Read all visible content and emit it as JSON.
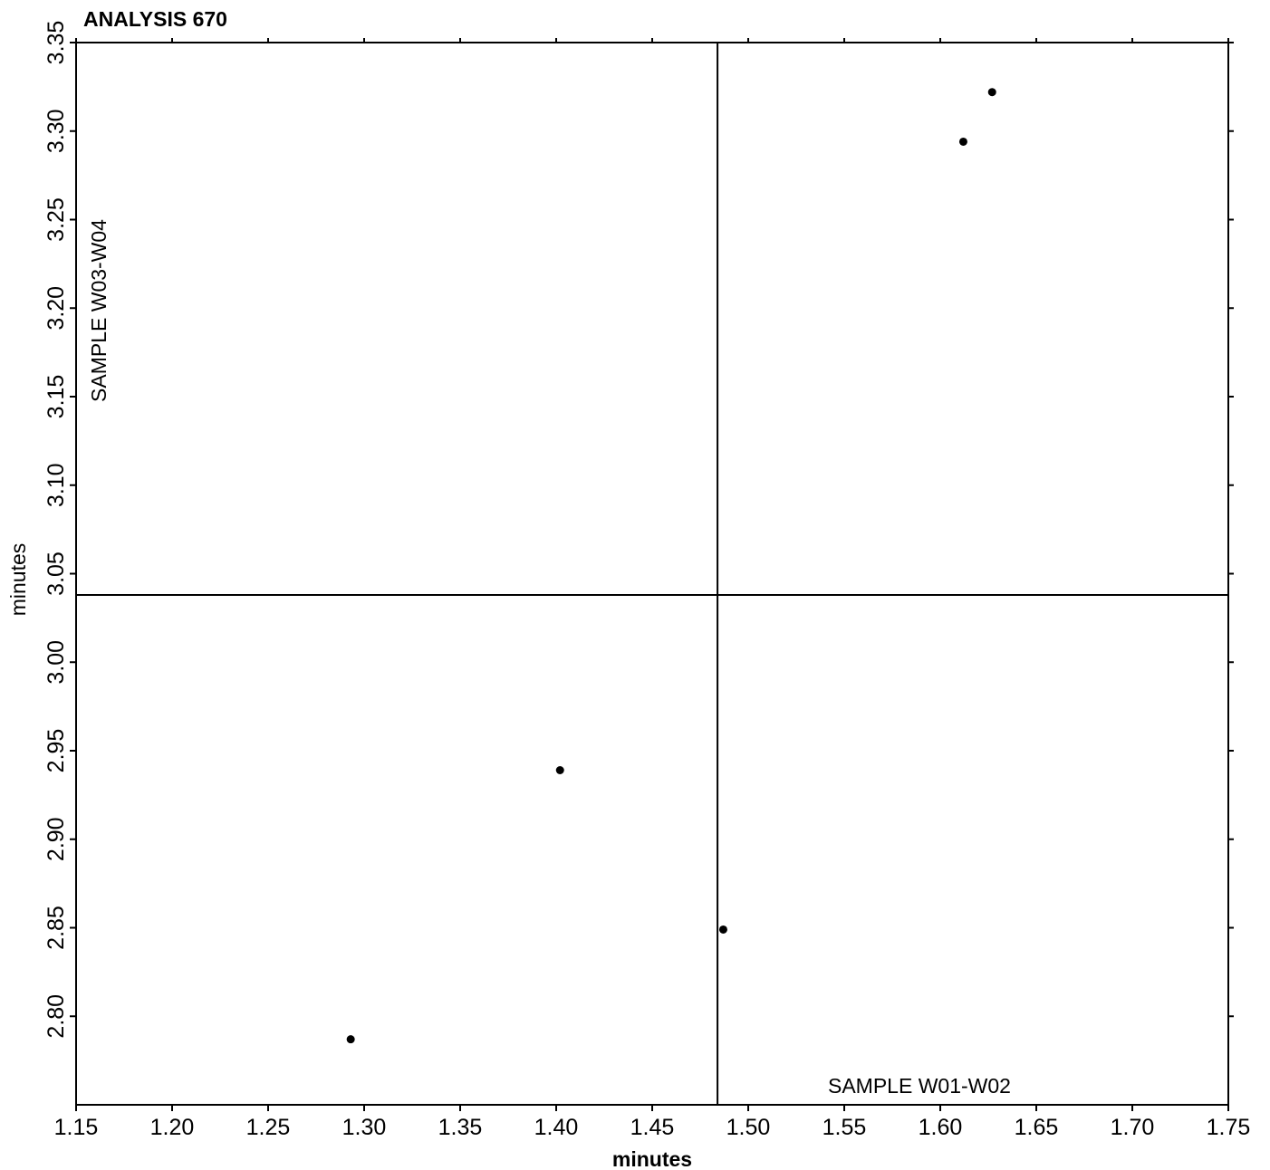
{
  "chart_data": {
    "type": "scatter",
    "title": "ANALYSIS 670",
    "xlabel": "minutes",
    "ylabel": "minutes",
    "xlim": [
      1.15,
      1.75
    ],
    "ylim": [
      2.75,
      3.35
    ],
    "x_ticks": [
      "1.15",
      "1.20",
      "1.25",
      "1.30",
      "1.35",
      "1.40",
      "1.45",
      "1.50",
      "1.55",
      "1.60",
      "1.65",
      "1.70",
      "1.75"
    ],
    "y_ticks": [
      "2.80",
      "2.85",
      "2.90",
      "2.95",
      "3.00",
      "3.05",
      "3.10",
      "3.15",
      "3.20",
      "3.25",
      "3.30",
      "3.35"
    ],
    "grid": false,
    "reference_lines": {
      "x": 1.484,
      "y": 3.038
    },
    "annotations": {
      "x_sample": "SAMPLE W01-W02",
      "y_sample": "SAMPLE W03-W04"
    },
    "points": [
      {
        "x": 1.293,
        "y": 2.787
      },
      {
        "x": 1.402,
        "y": 2.939
      },
      {
        "x": 1.487,
        "y": 2.849
      },
      {
        "x": 1.612,
        "y": 3.294
      },
      {
        "x": 1.627,
        "y": 3.322
      }
    ],
    "colors": {
      "marker": "#000000",
      "axis": "#000000"
    }
  }
}
